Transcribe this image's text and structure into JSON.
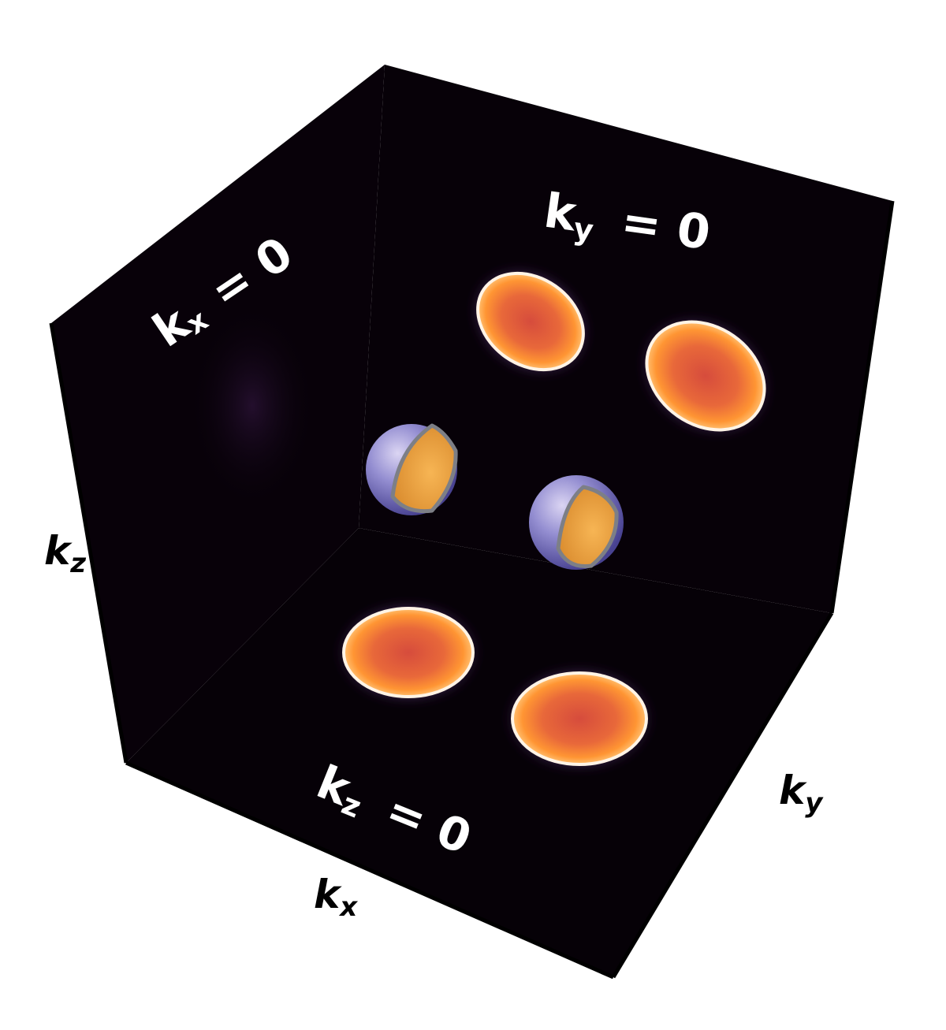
{
  "colors": {
    "plane": "#070108",
    "edge": "#000000",
    "ring_glow": "#fff4e6",
    "disk_center": "#d9503a",
    "disk_edge": "#ff9a33",
    "sphere_shell": "#7e78c9",
    "sphere_core": "#f0a33e",
    "axis_text": "#000000",
    "slice_text": "#ffffff"
  },
  "slice_labels": {
    "kx_plane": {
      "var": "k",
      "sub": "x",
      "rest": "= 0"
    },
    "ky_plane": {
      "var": "k",
      "sub": "y",
      "rest": "= 0"
    },
    "kz_plane": {
      "var": "k",
      "sub": "z",
      "rest": "= 0"
    }
  },
  "axis_labels": {
    "kx": {
      "var": "k",
      "sub": "x"
    },
    "ky": {
      "var": "k",
      "sub": "y"
    },
    "kz": {
      "var": "k",
      "sub": "z"
    }
  }
}
